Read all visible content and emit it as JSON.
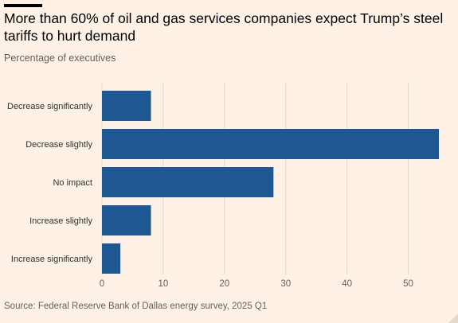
{
  "header": {
    "title": "More than 60% of oil and gas services companies expect Trump’s steel tariffs to hurt demand",
    "subtitle": "Percentage of executives"
  },
  "footer": {
    "source": "Source: Federal Reserve Bank of Dallas energy survey, 2025 Q1"
  },
  "chart_data": {
    "type": "bar",
    "orientation": "horizontal",
    "title": "More than 60% of oil and gas services companies expect Trump’s steel tariffs to hurt demand",
    "subtitle": "Percentage of executives",
    "categories": [
      "Decrease significantly",
      "Decrease slightly",
      "No impact",
      "Increase slightly",
      "Increase significantly"
    ],
    "values": [
      8,
      55,
      28,
      8,
      3
    ],
    "xlim": [
      0,
      55
    ],
    "xticks": [
      0,
      10,
      20,
      30,
      40,
      50
    ],
    "grid": true,
    "bar_color": "#1f5792",
    "grid_color": "#e3d6cb"
  }
}
